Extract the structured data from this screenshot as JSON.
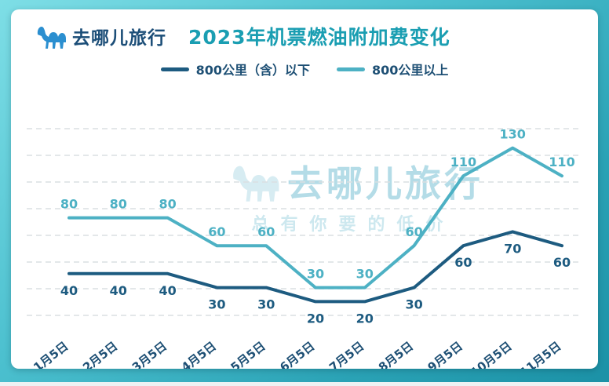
{
  "header": {
    "brand": "去哪儿旅行",
    "title": "2023年机票燃油附加费变化"
  },
  "watermark": {
    "brand": "去哪儿旅行",
    "tagline": "总有你要的低价"
  },
  "colors": {
    "frame_teal": "#2aa2b5",
    "title_teal": "#1a9eb2",
    "brand_navy": "#1c4e78",
    "axis_label_navy": "#1d4f74",
    "series_dark": "#1d5b80",
    "series_light": "#4db1c4"
  },
  "chart_data": {
    "type": "line",
    "title": "2023年机票燃油附加费变化",
    "categories": [
      "1月5日",
      "2月5日",
      "3月5日",
      "4月5日",
      "5月5日",
      "6月5日",
      "7月5日",
      "8月5日",
      "9月5日",
      "10月5日",
      "11月5日"
    ],
    "series": [
      {
        "name": "800公里（含）以下",
        "color": "#1d5b80",
        "label_position": "below",
        "values": [
          40,
          40,
          40,
          30,
          30,
          20,
          20,
          30,
          60,
          70,
          60
        ]
      },
      {
        "name": "800公里以上",
        "color": "#4db1c4",
        "label_position": "above",
        "values": [
          80,
          80,
          80,
          60,
          60,
          30,
          30,
          60,
          110,
          130,
          110
        ]
      }
    ],
    "ylim": [
      0,
      150
    ],
    "grid": "dashed-horizontal",
    "legend_position": "top",
    "xlabel": "",
    "ylabel": ""
  }
}
